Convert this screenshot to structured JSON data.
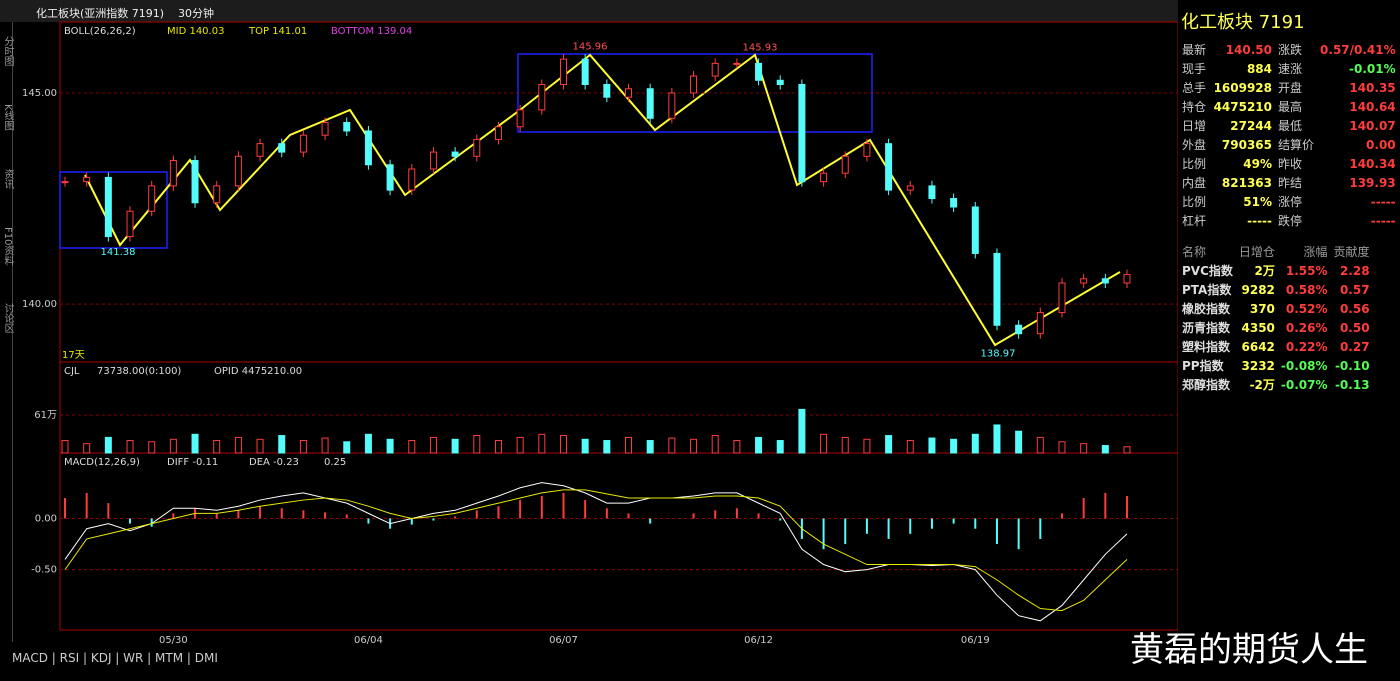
{
  "header": {
    "title": "化工板块(亚洲指数 7191)",
    "period": "30分钟"
  },
  "sidebar": [
    "分时图",
    "K线图",
    "资讯",
    "F10资料",
    "讨论区"
  ],
  "chart_data": [
    {
      "type": "candlestick",
      "indicators": [
        "BOLL(26,26,2)",
        "MID 140.03",
        "TOP 141.01",
        "BOTTOM 139.04"
      ],
      "note": "17天",
      "values": [
        142.9,
        143.0,
        141.6,
        142.2,
        142.8,
        143.4,
        142.4,
        142.8,
        143.5,
        143.8,
        143.6,
        144.0,
        144.3,
        144.1,
        143.3,
        142.7,
        143.2,
        143.6,
        143.5,
        143.9,
        144.2,
        144.6,
        145.2,
        145.8,
        145.2,
        144.9,
        145.1,
        144.4,
        145.0,
        145.4,
        145.7,
        145.7,
        145.3,
        145.2,
        142.9,
        143.1,
        143.5,
        143.8,
        142.7,
        142.8,
        142.5,
        142.3,
        141.2,
        139.5,
        139.3,
        139.8,
        140.5,
        140.6,
        140.5,
        140.7
      ],
      "up_color": "#ff3c3c",
      "down_color": "#54fcfc",
      "annotations": [
        {
          "label": "145.96",
          "value": 145.96
        },
        {
          "label": "145.93",
          "value": 145.93
        },
        {
          "label": "141.38",
          "value": 141.38
        },
        {
          "label": "138.97",
          "value": 138.97
        }
      ],
      "ylim": [
        138.63,
        146.68
      ],
      "yticks": [
        {
          "value": 145,
          "label": "145.00"
        },
        {
          "value": 140,
          "label": "140.00"
        }
      ],
      "grid": true
    },
    {
      "type": "bar",
      "indicators": [
        "CJL",
        "73738.00(0:100)",
        "OPID 4475210.00"
      ],
      "values": [
        20,
        15,
        25,
        20,
        18,
        22,
        30,
        20,
        25,
        22,
        28,
        20,
        24,
        18,
        30,
        22,
        20,
        25,
        22,
        28,
        20,
        25,
        30,
        28,
        22,
        20,
        25,
        20,
        24,
        22,
        28,
        20,
        25,
        20,
        70,
        30,
        25,
        22,
        28,
        20,
        24,
        22,
        30,
        45,
        35,
        25,
        18,
        15,
        12,
        10
      ],
      "ylim": [
        0,
        146
      ],
      "yticks": [
        {
          "value": 61,
          "label": "61万"
        }
      ],
      "grid": true
    },
    {
      "type": "macd",
      "indicators": [
        "MACD(12,26,9)",
        "DIFF -0.11",
        "DEA -0.23",
        "0.25"
      ],
      "categories": [
        null,
        null,
        null,
        null,
        null,
        "05/30",
        null,
        null,
        null,
        null,
        null,
        null,
        null,
        null,
        "06/04",
        null,
        null,
        null,
        null,
        null,
        null,
        null,
        null,
        "06/07",
        null,
        null,
        null,
        null,
        null,
        null,
        null,
        null,
        "06/12",
        null,
        null,
        null,
        null,
        null,
        null,
        null,
        null,
        null,
        "06/19",
        null,
        null,
        null,
        null,
        null,
        null,
        null
      ],
      "values": [
        0.2,
        0.25,
        0.15,
        -0.05,
        -0.08,
        0.05,
        0.1,
        0.05,
        0.08,
        0.12,
        0.1,
        0.08,
        0.06,
        0.04,
        -0.05,
        -0.1,
        -0.06,
        -0.02,
        0.02,
        0.08,
        0.12,
        0.18,
        0.22,
        0.25,
        0.18,
        0.1,
        0.05,
        -0.05,
        0.0,
        0.05,
        0.08,
        0.1,
        0.05,
        -0.02,
        -0.2,
        -0.3,
        -0.25,
        -0.15,
        -0.2,
        -0.15,
        -0.1,
        -0.05,
        -0.1,
        -0.25,
        -0.3,
        -0.2,
        0.05,
        0.2,
        0.25,
        0.22
      ],
      "series": [
        {
          "name": "DIFF",
          "color": "#ffffff",
          "values": [
            -0.4,
            -0.1,
            -0.05,
            -0.12,
            -0.05,
            0.1,
            0.1,
            0.08,
            0.12,
            0.18,
            0.22,
            0.25,
            0.2,
            0.15,
            0.05,
            -0.05,
            0.0,
            0.05,
            0.08,
            0.15,
            0.22,
            0.3,
            0.35,
            0.32,
            0.25,
            0.15,
            0.15,
            0.2,
            0.2,
            0.22,
            0.25,
            0.25,
            0.15,
            0.05,
            -0.3,
            -0.45,
            -0.52,
            -0.5,
            -0.45,
            -0.45,
            -0.46,
            -0.45,
            -0.5,
            -0.75,
            -0.95,
            -1.0,
            -0.85,
            -0.6,
            -0.35,
            -0.15
          ]
        },
        {
          "name": "DEA",
          "color": "#e8e800",
          "values": [
            -0.5,
            -0.2,
            -0.15,
            -0.1,
            -0.05,
            0.0,
            0.05,
            0.05,
            0.08,
            0.12,
            0.15,
            0.18,
            0.2,
            0.18,
            0.12,
            0.05,
            0.0,
            0.02,
            0.05,
            0.1,
            0.15,
            0.2,
            0.25,
            0.28,
            0.28,
            0.24,
            0.2,
            0.2,
            0.2,
            0.2,
            0.22,
            0.22,
            0.2,
            0.12,
            -0.1,
            -0.25,
            -0.35,
            -0.45,
            -0.45,
            -0.45,
            -0.45,
            -0.45,
            -0.47,
            -0.6,
            -0.75,
            -0.88,
            -0.9,
            -0.8,
            -0.6,
            -0.4
          ]
        }
      ],
      "ylim": [
        -1.09,
        0.64
      ],
      "yticks": [
        {
          "value": 0,
          "label": "0.00"
        },
        {
          "value": -0.5,
          "label": "-0.50"
        }
      ],
      "grid": true
    }
  ],
  "quote": {
    "title": "化工板块",
    "code": "7191",
    "rows": [
      [
        "最新",
        "140.50",
        "涨跌",
        "0.57/0.41%"
      ],
      [
        "现手",
        "884",
        "速涨",
        "-0.01%"
      ],
      [
        "总手",
        "1609928",
        "开盘",
        "140.35"
      ],
      [
        "持仓",
        "4475210",
        "最高",
        "140.64"
      ],
      [
        "日增",
        "27244",
        "最低",
        "140.07"
      ],
      [
        "外盘",
        "790365",
        "结算价",
        "0.00"
      ],
      [
        "比例",
        "49%",
        "昨收",
        "140.34"
      ],
      [
        "内盘",
        "821363",
        "昨结",
        "139.93"
      ],
      [
        "比例",
        "51%",
        "涨停",
        "-----"
      ],
      [
        "杠杆",
        "-----",
        "跌停",
        "-----"
      ]
    ]
  },
  "sector_table": {
    "header": [
      "名称",
      "日增仓",
      "涨幅",
      "贡献度"
    ],
    "rows": [
      [
        "PVC指数",
        "2万",
        "1.55%",
        "2.28"
      ],
      [
        "PTA指数",
        "9282",
        "0.58%",
        "0.57"
      ],
      [
        "橡胶指数",
        "370",
        "0.52%",
        "0.56"
      ],
      [
        "沥青指数",
        "4350",
        "0.26%",
        "0.50"
      ],
      [
        "塑料指数",
        "6642",
        "0.22%",
        "0.27"
      ],
      [
        "PP指数",
        "3232",
        "-0.08%",
        "-0.10"
      ],
      [
        "郑醇指数",
        "-2万",
        "-0.07%",
        "-0.13"
      ]
    ]
  },
  "tabs": [
    "MACD",
    "RSI",
    "KDJ",
    "WR",
    "MTM",
    "DMI"
  ],
  "watermark": "黄磊的期货人生"
}
